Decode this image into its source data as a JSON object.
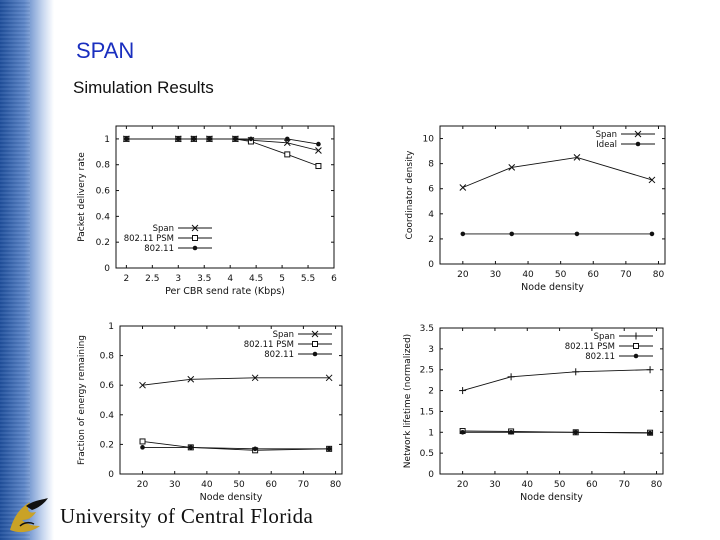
{
  "slide": {
    "title": "SPAN",
    "subtitle": "Simulation Results",
    "footer_text": "University of Central Florida",
    "colors": {
      "title": "#1a2fbf",
      "sidebar": "#1f4f9c",
      "logo_gold": "#c9a227"
    }
  },
  "chart_data": [
    {
      "type": "line",
      "title": "",
      "xlabel": "Per CBR send rate (Kbps)",
      "ylabel": "Packet delivery rate",
      "xlim": [
        1.8,
        6
      ],
      "ylim": [
        0,
        1.1
      ],
      "xticks": [
        "2",
        "2.5",
        "3",
        "3.5",
        "4",
        "4.5",
        "5",
        "5.5",
        "6"
      ],
      "yticks": [
        "0",
        "0.2",
        "0.4",
        "0.6",
        "0.8",
        "1"
      ],
      "legend": "bottom-left",
      "series": [
        {
          "name": "Span",
          "marker": "x",
          "x": [
            2,
            3,
            3.3,
            3.6,
            4.1,
            4.4,
            5.1,
            5.7
          ],
          "y": [
            1,
            1,
            1,
            1,
            1,
            0.99,
            0.97,
            0.91
          ]
        },
        {
          "name": "802.11 PSM",
          "marker": "square",
          "x": [
            2,
            3,
            3.3,
            3.6,
            4.1,
            4.4,
            5.1,
            5.7
          ],
          "y": [
            1,
            1,
            1,
            1,
            1,
            0.98,
            0.88,
            0.79
          ]
        },
        {
          "name": "802.11",
          "marker": "dot",
          "x": [
            2,
            3,
            3.3,
            3.6,
            4.1,
            4.4,
            5.1,
            5.7
          ],
          "y": [
            1,
            1,
            1,
            1,
            1,
            1,
            1,
            0.96
          ]
        }
      ]
    },
    {
      "type": "line",
      "title": "",
      "xlabel": "Node density",
      "ylabel": "Coordinator density",
      "xlim": [
        13,
        82
      ],
      "ylim": [
        0,
        11
      ],
      "xticks": [
        "20",
        "30",
        "40",
        "50",
        "60",
        "70",
        "80"
      ],
      "yticks": [
        "0",
        "2",
        "4",
        "6",
        "8",
        "10"
      ],
      "legend": "top-right",
      "series": [
        {
          "name": "Span",
          "marker": "x",
          "x": [
            20,
            35,
            55,
            78
          ],
          "y": [
            6.1,
            7.7,
            8.5,
            6.7
          ]
        },
        {
          "name": "Ideal",
          "marker": "dot",
          "x": [
            20,
            35,
            55,
            78
          ],
          "y": [
            2.4,
            2.4,
            2.4,
            2.4
          ]
        }
      ]
    },
    {
      "type": "line",
      "title": "",
      "xlabel": "Node density",
      "ylabel": "Fraction of energy remaining",
      "xlim": [
        13,
        82
      ],
      "ylim": [
        0,
        1
      ],
      "xticks": [
        "20",
        "30",
        "40",
        "50",
        "60",
        "70",
        "80"
      ],
      "yticks": [
        "0",
        "0.2",
        "0.4",
        "0.6",
        "0.8",
        "1"
      ],
      "legend": "top-right",
      "series": [
        {
          "name": "Span",
          "marker": "x",
          "x": [
            20,
            35,
            55,
            78
          ],
          "y": [
            0.6,
            0.64,
            0.65,
            0.65
          ]
        },
        {
          "name": "802.11 PSM",
          "marker": "square",
          "x": [
            20,
            35,
            55,
            78
          ],
          "y": [
            0.22,
            0.18,
            0.16,
            0.17
          ]
        },
        {
          "name": "802.11",
          "marker": "dot",
          "x": [
            20,
            35,
            55,
            78
          ],
          "y": [
            0.18,
            0.18,
            0.17,
            0.17
          ]
        }
      ]
    },
    {
      "type": "line",
      "title": "",
      "xlabel": "Node density",
      "ylabel": "Network lifetime (normalized)",
      "xlim": [
        13,
        82
      ],
      "ylim": [
        0,
        3.5
      ],
      "xticks": [
        "20",
        "30",
        "40",
        "50",
        "60",
        "70",
        "80"
      ],
      "yticks": [
        "0",
        "0.5",
        "1",
        "1.5",
        "2",
        "2.5",
        "3",
        "3.5"
      ],
      "legend": "top-right",
      "series": [
        {
          "name": "Span",
          "marker": "plus",
          "x": [
            20,
            35,
            55,
            78
          ],
          "y": [
            2.0,
            2.33,
            2.45,
            2.5
          ]
        },
        {
          "name": "802.11 PSM",
          "marker": "square",
          "x": [
            20,
            35,
            55,
            78
          ],
          "y": [
            1.03,
            1.02,
            1.0,
            0.99
          ]
        },
        {
          "name": "802.11",
          "marker": "dot",
          "x": [
            20,
            35,
            55,
            78
          ],
          "y": [
            1.0,
            1.0,
            1.0,
            0.98
          ]
        }
      ]
    }
  ]
}
